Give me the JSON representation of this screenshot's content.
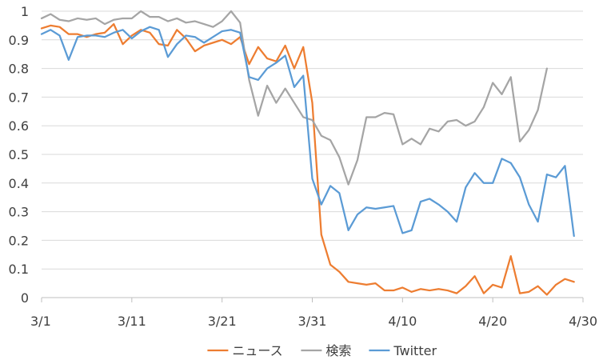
{
  "chart_data": {
    "type": "line",
    "title": "",
    "xlabel": "",
    "ylabel": "",
    "ylim": [
      0,
      1
    ],
    "yticks": [
      "0",
      "0.1",
      "0.2",
      "0.3",
      "0.4",
      "0.5",
      "0.6",
      "0.7",
      "0.8",
      "0.9",
      "1"
    ],
    "xticks": [
      {
        "day": 1,
        "label": "3/1"
      },
      {
        "day": 11,
        "label": "3/11"
      },
      {
        "day": 21,
        "label": "3/21"
      },
      {
        "day": 31,
        "label": "3/31"
      },
      {
        "day": 41,
        "label": "4/10"
      },
      {
        "day": 51,
        "label": "4/20"
      },
      {
        "day": 61,
        "label": "4/30"
      }
    ],
    "x_start": "3/1",
    "grid": "horizontal",
    "legend_position": "bottom",
    "series": [
      {
        "name": "ニュース",
        "color": "#ED7D31",
        "values": [
          0.94,
          0.95,
          0.945,
          0.92,
          0.92,
          0.91,
          0.92,
          0.925,
          0.955,
          0.885,
          0.915,
          0.935,
          0.925,
          0.885,
          0.88,
          0.935,
          0.905,
          0.86,
          0.88,
          0.89,
          0.9,
          0.885,
          0.91,
          0.815,
          0.875,
          0.835,
          0.825,
          0.88,
          0.8,
          0.875,
          0.68,
          0.22,
          0.115,
          0.09,
          0.055,
          0.05,
          0.045,
          0.05,
          0.025,
          0.025,
          0.035,
          0.02,
          0.03,
          0.025,
          0.03,
          0.025,
          0.015,
          0.04,
          0.075,
          0.015,
          0.045,
          0.035,
          0.145,
          0.015,
          0.02,
          0.04,
          0.01,
          0.045,
          0.065,
          0.055
        ]
      },
      {
        "name": "検索",
        "color": "#A5A5A5",
        "values": [
          0.975,
          0.99,
          0.97,
          0.965,
          0.975,
          0.97,
          0.975,
          0.955,
          0.97,
          0.975,
          0.975,
          1.0,
          0.98,
          0.98,
          0.965,
          0.975,
          0.96,
          0.965,
          0.955,
          0.945,
          0.965,
          1.0,
          0.96,
          0.76,
          0.635,
          0.74,
          0.68,
          0.73,
          0.68,
          0.63,
          0.62,
          0.565,
          0.55,
          0.49,
          0.395,
          0.48,
          0.63,
          0.63,
          0.645,
          0.64,
          0.535,
          0.555,
          0.535,
          0.59,
          0.58,
          0.615,
          0.62,
          0.6,
          0.615,
          0.665,
          0.75,
          0.71,
          0.77,
          0.545,
          0.585,
          0.655,
          0.8
        ]
      },
      {
        "name": "Twitter",
        "color": "#5B9BD5",
        "values": [
          0.92,
          0.935,
          0.915,
          0.83,
          0.91,
          0.915,
          0.915,
          0.91,
          0.925,
          0.935,
          0.905,
          0.93,
          0.945,
          0.935,
          0.84,
          0.885,
          0.915,
          0.91,
          0.89,
          0.91,
          0.93,
          0.935,
          0.925,
          0.77,
          0.76,
          0.8,
          0.82,
          0.845,
          0.735,
          0.775,
          0.415,
          0.325,
          0.39,
          0.365,
          0.235,
          0.29,
          0.315,
          0.31,
          0.315,
          0.32,
          0.225,
          0.235,
          0.335,
          0.345,
          0.325,
          0.3,
          0.265,
          0.385,
          0.435,
          0.4,
          0.4,
          0.485,
          0.47,
          0.42,
          0.325,
          0.265,
          0.43,
          0.42,
          0.46,
          0.215
        ]
      }
    ]
  }
}
